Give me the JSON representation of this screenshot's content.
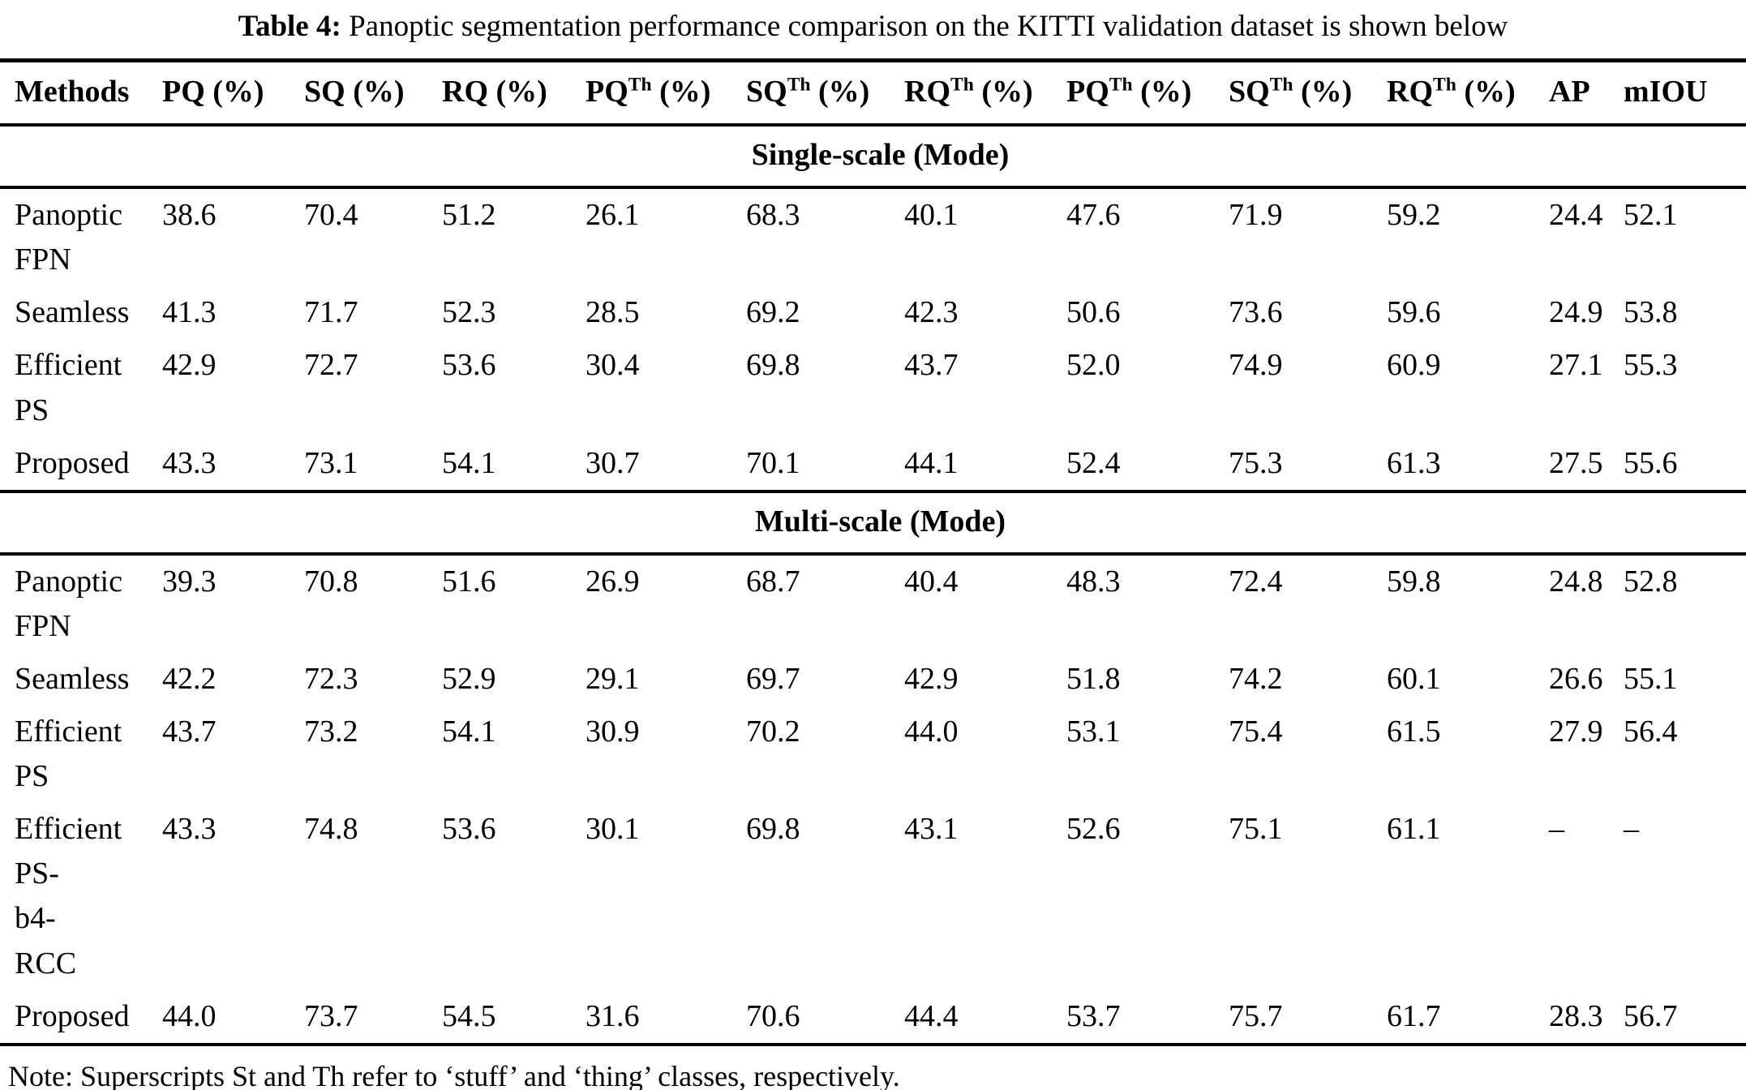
{
  "caption": {
    "label": "Table 4:",
    "text": " Panoptic segmentation performance comparison on the KITTI validation dataset is shown below"
  },
  "note": "Note: Superscripts St and Th refer to ‘stuff’ and ‘thing’ classes, respectively.",
  "colors": {
    "text": "#000000",
    "background": "#ffffff",
    "rule": "#000000"
  },
  "table": {
    "columns": [
      {
        "base": "Methods",
        "sup": "",
        "rest": ""
      },
      {
        "base": "PQ",
        "sup": "",
        "rest": " (%)"
      },
      {
        "base": "SQ",
        "sup": "",
        "rest": " (%)"
      },
      {
        "base": "RQ",
        "sup": "",
        "rest": " (%)"
      },
      {
        "base": "PQ",
        "sup": "Th",
        "rest": " (%)"
      },
      {
        "base": "SQ",
        "sup": "Th",
        "rest": " (%)"
      },
      {
        "base": "RQ",
        "sup": "Th",
        "rest": " (%)"
      },
      {
        "base": "PQ",
        "sup": "Th",
        "rest": " (%)"
      },
      {
        "base": "SQ",
        "sup": "Th",
        "rest": " (%)"
      },
      {
        "base": "RQ",
        "sup": "Th",
        "rest": " (%)"
      },
      {
        "base": "AP",
        "sup": "",
        "rest": ""
      },
      {
        "base": "mIOU",
        "sup": "",
        "rest": ""
      }
    ],
    "sections": [
      {
        "title": "Single-scale (Mode)",
        "rows": [
          {
            "method": "Panoptic FPN",
            "method_lines": [
              "Panoptic",
              "FPN"
            ],
            "values": [
              "38.6",
              "70.4",
              "51.2",
              "26.1",
              "68.3",
              "40.1",
              "47.6",
              "71.9",
              "59.2",
              "24.4",
              "52.1"
            ]
          },
          {
            "method": "Seamless",
            "method_lines": [
              "Seamless"
            ],
            "values": [
              "41.3",
              "71.7",
              "52.3",
              "28.5",
              "69.2",
              "42.3",
              "50.6",
              "73.6",
              "59.6",
              "24.9",
              "53.8"
            ]
          },
          {
            "method": "Efficient PS",
            "method_lines": [
              "Efficient",
              "PS"
            ],
            "values": [
              "42.9",
              "72.7",
              "53.6",
              "30.4",
              "69.8",
              "43.7",
              "52.0",
              "74.9",
              "60.9",
              "27.1",
              "55.3"
            ]
          },
          {
            "method": "Proposed",
            "method_lines": [
              "Proposed"
            ],
            "values": [
              "43.3",
              "73.1",
              "54.1",
              "30.7",
              "70.1",
              "44.1",
              "52.4",
              "75.3",
              "61.3",
              "27.5",
              "55.6"
            ]
          }
        ]
      },
      {
        "title": "Multi-scale (Mode)",
        "rows": [
          {
            "method": "Panoptic FPN",
            "method_lines": [
              "Panoptic",
              "FPN"
            ],
            "values": [
              "39.3",
              "70.8",
              "51.6",
              "26.9",
              "68.7",
              "40.4",
              "48.3",
              "72.4",
              "59.8",
              "24.8",
              "52.8"
            ]
          },
          {
            "method": "Seamless",
            "method_lines": [
              "Seamless"
            ],
            "values": [
              "42.2",
              "72.3",
              "52.9",
              "29.1",
              "69.7",
              "42.9",
              "51.8",
              "74.2",
              "60.1",
              "26.6",
              "55.1"
            ]
          },
          {
            "method": "Efficient PS",
            "method_lines": [
              "Efficient",
              "PS"
            ],
            "values": [
              "43.7",
              "73.2",
              "54.1",
              "30.9",
              "70.2",
              "44.0",
              "53.1",
              "75.4",
              "61.5",
              "27.9",
              "56.4"
            ]
          },
          {
            "method": "Efficient PS-b4-RCC",
            "method_lines": [
              "Efficient",
              "PS-",
              "b4-",
              "RCC"
            ],
            "values": [
              "43.3",
              "74.8",
              "53.6",
              "30.1",
              "69.8",
              "43.1",
              "52.6",
              "75.1",
              "61.1",
              "–",
              "–"
            ]
          },
          {
            "method": "Proposed",
            "method_lines": [
              "Proposed"
            ],
            "values": [
              "44.0",
              "73.7",
              "54.5",
              "31.6",
              "70.6",
              "44.4",
              "53.7",
              "75.7",
              "61.7",
              "28.3",
              "56.7"
            ]
          }
        ]
      }
    ]
  }
}
